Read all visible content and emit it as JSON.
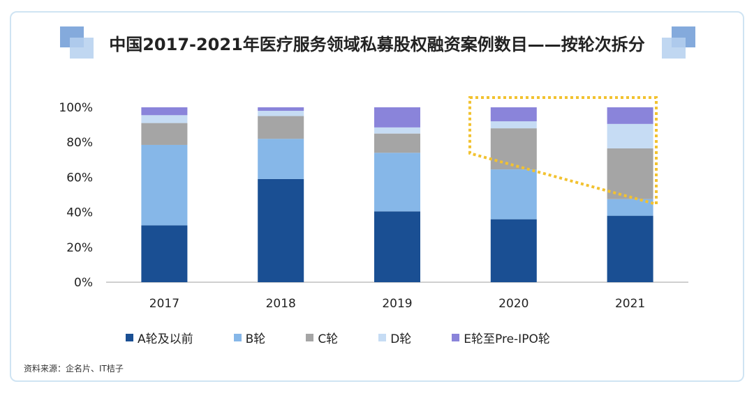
{
  "title": "中国2017-2021年医疗服务领域私募股权融资案例数目——按轮次拆分",
  "source": "资料来源：企名片、IT桔子",
  "colors": {
    "A轮及以前": "#1a4f93",
    "B轮": "#86b7e8",
    "C轮": "#a5a5a5",
    "D轮": "#c6dcf4",
    "E轮至Pre-IPO轮": "#8a84da",
    "highlight": "#f2c230"
  },
  "legend": [
    "A轮及以前",
    "B轮",
    "C轮",
    "D轮",
    "E轮至Pre-IPO轮"
  ],
  "chart_data": {
    "type": "bar",
    "stacked": true,
    "categories": [
      "2017",
      "2018",
      "2019",
      "2020",
      "2021"
    ],
    "series": [
      {
        "name": "A轮及以前",
        "values": [
          32.5,
          59,
          40.5,
          36,
          38
        ]
      },
      {
        "name": "B轮",
        "values": [
          46,
          23,
          33.5,
          28.5,
          9.5
        ]
      },
      {
        "name": "C轮",
        "values": [
          12.5,
          13,
          11,
          23.5,
          29
        ]
      },
      {
        "name": "D轮",
        "values": [
          4.5,
          3,
          3.5,
          4,
          14
        ]
      },
      {
        "name": "E轮至Pre-IPO轮",
        "values": [
          4.5,
          2,
          11.5,
          8,
          9.5
        ]
      }
    ],
    "yticks": [
      "0%",
      "20%",
      "40%",
      "60%",
      "80%",
      "100%"
    ],
    "ylim": [
      0,
      100
    ],
    "grid": false,
    "legend_position": "bottom",
    "annotation": "dotted yellow outline highlighting 2020–2021 C轮 and later rounds"
  }
}
